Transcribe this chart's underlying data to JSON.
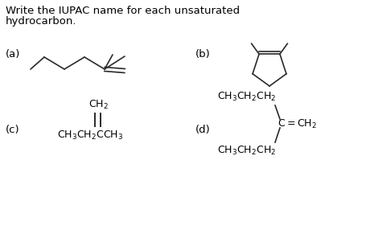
{
  "title_line1": "Write the IUPAC name for each unsaturated",
  "title_line2": "hydrocarbon.",
  "bg_color": "#ffffff",
  "line_color": "#2a2a2a",
  "text_color": "#000000",
  "label_a": "(a)",
  "label_b": "(b)",
  "label_c": "(c)",
  "label_d": "(d)",
  "font_size_title": 9.5,
  "font_size_label": 9.5,
  "font_size_chem": 9.0
}
